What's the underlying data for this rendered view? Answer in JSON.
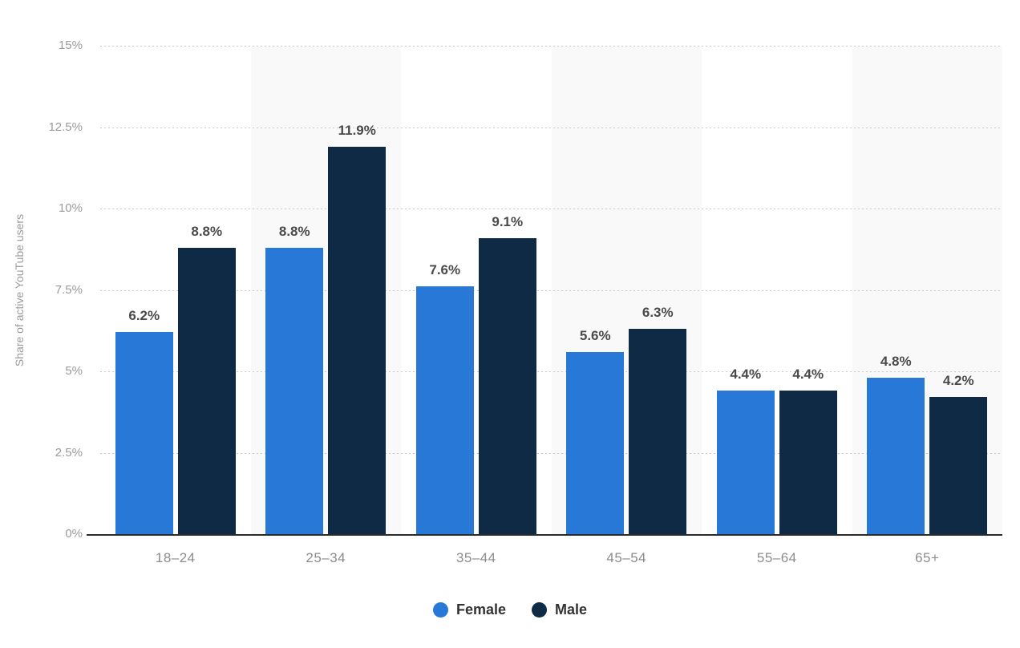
{
  "chart_data": {
    "type": "bar",
    "title": "",
    "xlabel": "",
    "ylabel": "Share of active YouTube users",
    "categories": [
      "18–24",
      "25–34",
      "35–44",
      "45–54",
      "55–64",
      "65+"
    ],
    "series": [
      {
        "name": "Female",
        "color": "#2878d8",
        "values": [
          6.2,
          8.8,
          7.6,
          5.6,
          4.4,
          4.8
        ],
        "labels": [
          "6.2%",
          "8.8%",
          "7.6%",
          "5.6%",
          "4.4%",
          "4.8%"
        ]
      },
      {
        "name": "Male",
        "color": "#0f2a44",
        "values": [
          8.8,
          11.9,
          9.1,
          6.3,
          4.4,
          4.2
        ],
        "labels": [
          "8.8%",
          "11.9%",
          "9.1%",
          "6.3%",
          "4.4%",
          "4.2%"
        ]
      }
    ],
    "ylim": [
      0,
      15
    ],
    "yticks": [
      {
        "value": 0,
        "label": "0%"
      },
      {
        "value": 2.5,
        "label": "2.5%"
      },
      {
        "value": 5,
        "label": "5%"
      },
      {
        "value": 7.5,
        "label": "7.5%"
      },
      {
        "value": 10,
        "label": "10%"
      },
      {
        "value": 12.5,
        "label": "12.5%"
      },
      {
        "value": 15,
        "label": "15%"
      }
    ],
    "grid": true,
    "gridline_color": "#c9c9c9",
    "plot_band_color": "#f9f9f9",
    "legend_position": "bottom"
  }
}
